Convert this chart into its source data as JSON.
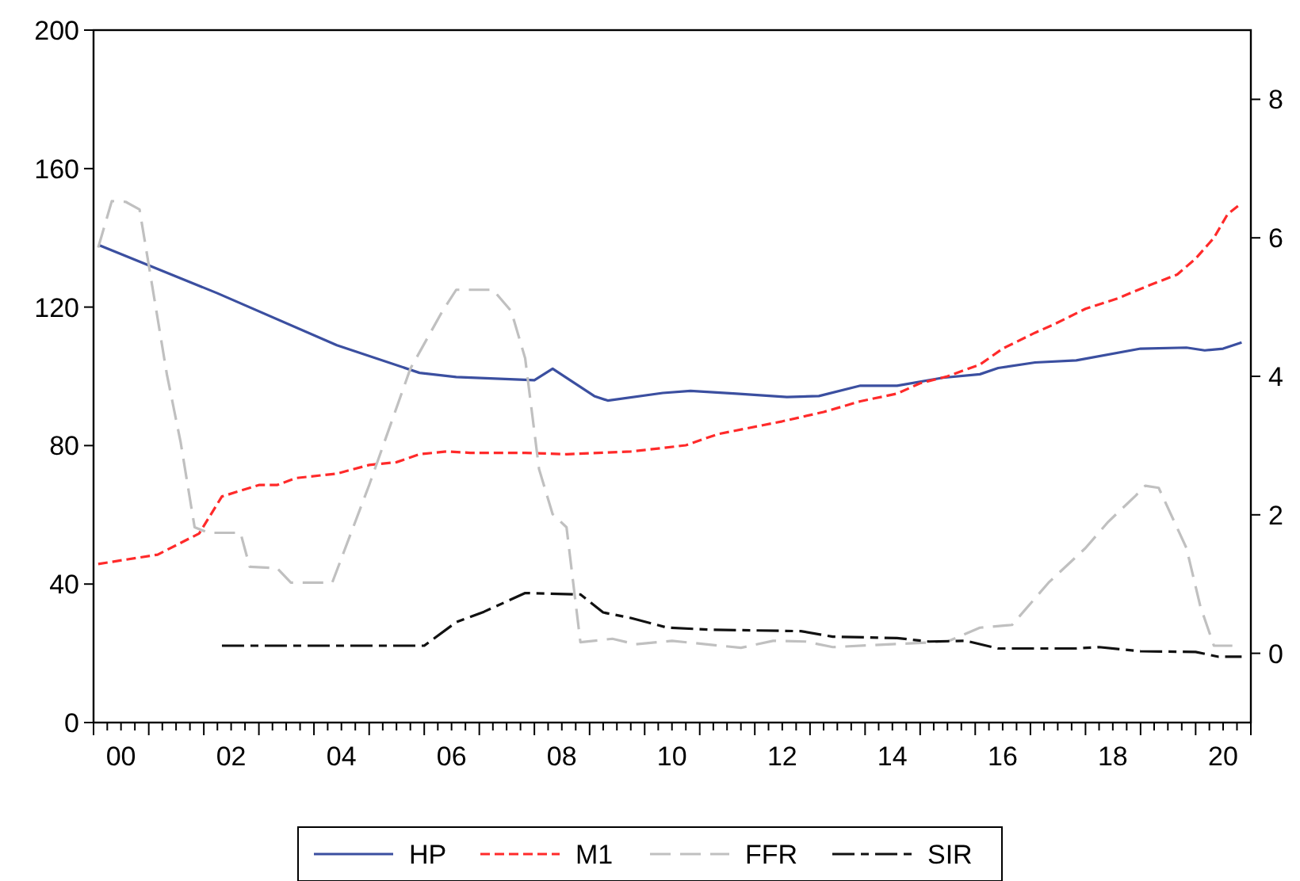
{
  "chart_data": {
    "type": "line",
    "xlim": [
      "2000-01",
      "2021-01"
    ],
    "ylim": [
      0,
      200
    ],
    "y2lim": [
      -1,
      9
    ],
    "xticks": [
      {
        "value": "2000-07",
        "label": "00"
      },
      {
        "value": "2002-07",
        "label": "02"
      },
      {
        "value": "2004-07",
        "label": "04"
      },
      {
        "value": "2006-07",
        "label": "06"
      },
      {
        "value": "2008-07",
        "label": "08"
      },
      {
        "value": "2010-07",
        "label": "10"
      },
      {
        "value": "2012-07",
        "label": "12"
      },
      {
        "value": "2014-07",
        "label": "14"
      },
      {
        "value": "2016-07",
        "label": "16"
      },
      {
        "value": "2018-07",
        "label": "18"
      },
      {
        "value": "2020-07",
        "label": "20"
      }
    ],
    "yticks": [
      0,
      40,
      80,
      120,
      160,
      200
    ],
    "y2ticks": [
      0,
      2,
      4,
      6,
      8
    ],
    "legend": "bottom",
    "series": [
      {
        "name": "HP",
        "color": "#3b4fa0",
        "line_style": "solid",
        "x": [
          "2000-02",
          "2002-04",
          "2004-06",
          "2005-12",
          "2006-08",
          "2008-01",
          "2008-05",
          "2009-02",
          "2009-05",
          "2010-05",
          "2010-11",
          "2011-09",
          "2012-08",
          "2013-03",
          "2013-12",
          "2014-08",
          "2015-06",
          "2016-02",
          "2016-06",
          "2017-02",
          "2017-11",
          "2019-01",
          "2019-11",
          "2020-03",
          "2020-07",
          "2020-11"
        ],
        "values": [
          138,
          124,
          109,
          101,
          99.8,
          98.9,
          102.2,
          94.3,
          93,
          95.2,
          95.8,
          95,
          94,
          94.3,
          97.3,
          97.3,
          99.6,
          100.6,
          102.4,
          104,
          104.6,
          108,
          108.3,
          107.5,
          108,
          109.8
        ]
      },
      {
        "name": "M1",
        "color": "#ff2a2a",
        "line_style": "dashed",
        "x": [
          "2000-02",
          "2001-03",
          "2001-12",
          "2002-05",
          "2003-01",
          "2003-05",
          "2003-09",
          "2004-06",
          "2005-01",
          "2005-07",
          "2005-12",
          "2006-06",
          "2006-11",
          "2007-11",
          "2008-08",
          "2009-10",
          "2010-05",
          "2010-10",
          "2011-05",
          "2012-07",
          "2013-04",
          "2013-12",
          "2014-08",
          "2015-01",
          "2015-07",
          "2016-02",
          "2016-07",
          "2017-02",
          "2017-06",
          "2018-01",
          "2018-08",
          "2019-03",
          "2019-09",
          "2020-01",
          "2020-05",
          "2020-08",
          "2020-11"
        ],
        "values": [
          45.8,
          48.5,
          54.6,
          65.3,
          68.6,
          68.6,
          70.6,
          71.9,
          74.4,
          75.2,
          77.5,
          78.3,
          77.9,
          77.9,
          77.5,
          78.3,
          79.3,
          80.1,
          83.3,
          87,
          89.7,
          92.8,
          95,
          98,
          100,
          103.4,
          108,
          112.6,
          114.9,
          119.5,
          122.5,
          126.3,
          129.4,
          134,
          140,
          146.9,
          150
        ]
      },
      {
        "name": "FFR",
        "color": "#c0c0c0",
        "line_style": "dashed",
        "axis": "y2",
        "x": [
          "2000-02",
          "2000-05",
          "2000-08",
          "2000-11",
          "2001-05",
          "2001-08",
          "2001-11",
          "2002-02",
          "2002-09",
          "2002-11",
          "2003-05",
          "2003-08",
          "2004-05",
          "2005-01",
          "2005-10",
          "2006-05",
          "2006-08",
          "2007-04",
          "2007-08",
          "2007-11",
          "2008-02",
          "2008-05",
          "2008-08",
          "2008-11",
          "2009-06",
          "2009-11",
          "2010-07",
          "2011-10",
          "2012-05",
          "2012-12",
          "2013-06",
          "2015-07",
          "2016-02",
          "2016-09",
          "2017-05",
          "2018-01",
          "2018-06",
          "2018-12",
          "2019-02",
          "2019-05",
          "2019-11",
          "2020-02",
          "2020-05",
          "2020-10"
        ],
        "values": [
          5.86,
          6.53,
          6.52,
          6.41,
          4.03,
          3.04,
          1.82,
          1.74,
          1.74,
          1.25,
          1.23,
          1.02,
          1.02,
          2.43,
          4.11,
          4.94,
          5.25,
          5.25,
          4.94,
          4.26,
          2.66,
          2.01,
          1.82,
          0.16,
          0.21,
          0.13,
          0.18,
          0.08,
          0.18,
          0.17,
          0.09,
          0.17,
          0.37,
          0.41,
          1.02,
          1.52,
          1.9,
          2.28,
          2.42,
          2.39,
          1.52,
          0.68,
          0.11,
          0.11
        ]
      },
      {
        "name": "SIR",
        "color": "#111111",
        "line_style": "dashed",
        "axis": "y2",
        "x": [
          "2002-05",
          "2006-01",
          "2006-08",
          "2007-02",
          "2007-11",
          "2008-11",
          "2009-04",
          "2009-10",
          "2010-06",
          "2011-04",
          "2012-11",
          "2013-06",
          "2014-08",
          "2015-03",
          "2015-11",
          "2016-06",
          "2017-11",
          "2018-04",
          "2019-01",
          "2020-01",
          "2020-06",
          "2020-11"
        ],
        "values": [
          0.11,
          0.11,
          0.45,
          0.6,
          0.87,
          0.85,
          0.59,
          0.51,
          0.37,
          0.34,
          0.32,
          0.24,
          0.22,
          0.17,
          0.18,
          0.07,
          0.07,
          0.09,
          0.03,
          0.02,
          -0.05,
          -0.05
        ]
      }
    ]
  }
}
